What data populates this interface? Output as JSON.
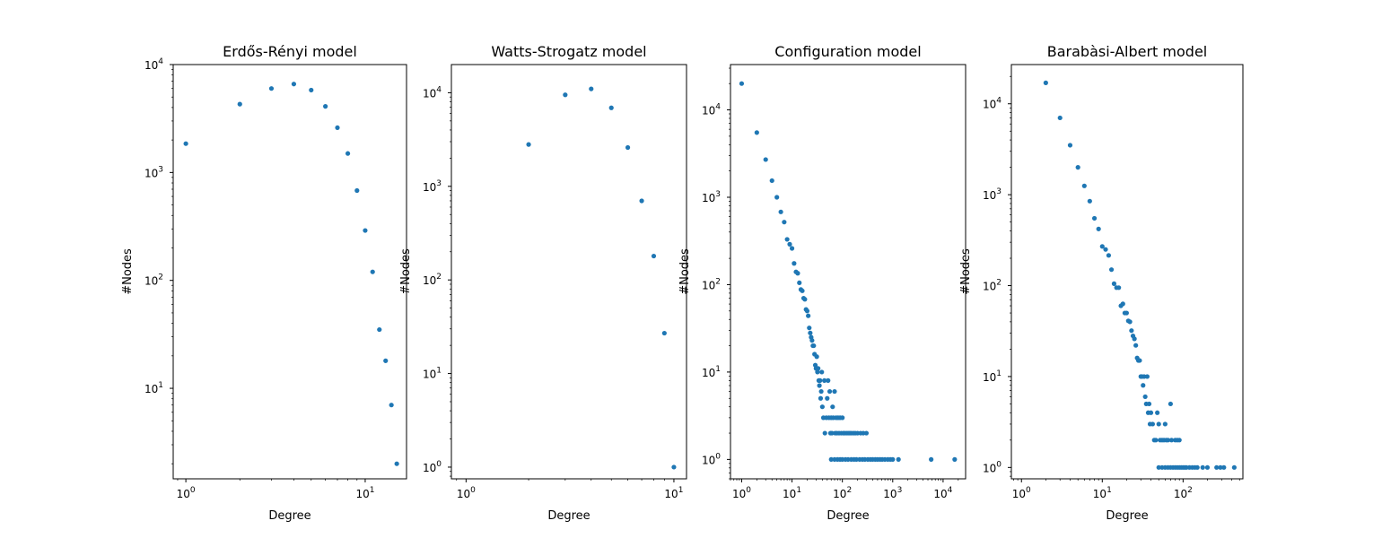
{
  "figure": {
    "background": "#ffffff",
    "marker_color": "#1f77b4"
  },
  "chart_data": [
    {
      "type": "scatter",
      "title": "Erdős-Rényi model",
      "xlabel": "Degree",
      "ylabel": "#Nodes",
      "xscale": "log",
      "yscale": "log",
      "xlim": [
        0.85,
        17
      ],
      "ylim": [
        1.45,
        10000
      ],
      "xticks": [
        {
          "value": 1,
          "base": "10",
          "exp": "0"
        },
        {
          "value": 10,
          "base": "10",
          "exp": "1"
        }
      ],
      "yticks": [
        {
          "value": 10,
          "base": "10",
          "exp": "1"
        },
        {
          "value": 100,
          "base": "10",
          "exp": "2"
        },
        {
          "value": 1000,
          "base": "10",
          "exp": "3"
        },
        {
          "value": 10000,
          "base": "10",
          "exp": "4"
        }
      ],
      "grid": false,
      "points": [
        [
          1,
          1850
        ],
        [
          2,
          4300
        ],
        [
          3,
          6000
        ],
        [
          4,
          6600
        ],
        [
          5,
          5800
        ],
        [
          6,
          4100
        ],
        [
          7,
          2600
        ],
        [
          8,
          1500
        ],
        [
          9,
          680
        ],
        [
          10,
          290
        ],
        [
          11,
          120
        ],
        [
          12,
          35
        ],
        [
          13,
          18
        ],
        [
          14,
          7
        ],
        [
          15,
          2
        ]
      ]
    },
    {
      "type": "scatter",
      "title": "Watts-Strogatz model",
      "xlabel": "Degree",
      "ylabel": "#Nodes",
      "xscale": "log",
      "yscale": "log",
      "xlim": [
        0.85,
        11.5
      ],
      "ylim": [
        0.75,
        20000
      ],
      "xticks": [
        {
          "value": 1,
          "base": "10",
          "exp": "0"
        },
        {
          "value": 10,
          "base": "10",
          "exp": "1"
        }
      ],
      "yticks": [
        {
          "value": 1,
          "base": "10",
          "exp": "0"
        },
        {
          "value": 10,
          "base": "10",
          "exp": "1"
        },
        {
          "value": 100,
          "base": "10",
          "exp": "2"
        },
        {
          "value": 1000,
          "base": "10",
          "exp": "3"
        },
        {
          "value": 10000,
          "base": "10",
          "exp": "4"
        }
      ],
      "grid": false,
      "points": [
        [
          2,
          2800
        ],
        [
          3,
          9500
        ],
        [
          4,
          11000
        ],
        [
          5,
          6900
        ],
        [
          6,
          2600
        ],
        [
          7,
          700
        ],
        [
          8,
          180
        ],
        [
          9,
          27
        ],
        [
          10,
          1
        ]
      ]
    },
    {
      "type": "scatter",
      "title": "Configuration model",
      "xlabel": "Degree",
      "ylabel": "#Nodes",
      "xscale": "log",
      "yscale": "log",
      "xlim": [
        0.6,
        28000
      ],
      "ylim": [
        0.6,
        33000
      ],
      "xticks": [
        {
          "value": 1,
          "base": "10",
          "exp": "0"
        },
        {
          "value": 10,
          "base": "10",
          "exp": "1"
        },
        {
          "value": 100,
          "base": "10",
          "exp": "2"
        },
        {
          "value": 1000,
          "base": "10",
          "exp": "3"
        },
        {
          "value": 10000,
          "base": "10",
          "exp": "4"
        }
      ],
      "yticks": [
        {
          "value": 1,
          "base": "10",
          "exp": "0"
        },
        {
          "value": 10,
          "base": "10",
          "exp": "1"
        },
        {
          "value": 100,
          "base": "10",
          "exp": "2"
        },
        {
          "value": 1000,
          "base": "10",
          "exp": "3"
        },
        {
          "value": 10000,
          "base": "10",
          "exp": "4"
        }
      ],
      "grid": false,
      "points": [
        [
          1,
          20000
        ],
        [
          2,
          5500
        ],
        [
          3,
          2700
        ],
        [
          4,
          1550
        ],
        [
          5,
          1000
        ],
        [
          6,
          680
        ],
        [
          7,
          520
        ],
        [
          8,
          330
        ],
        [
          9,
          290
        ],
        [
          10,
          260
        ],
        [
          11,
          175
        ],
        [
          12,
          140
        ],
        [
          13,
          135
        ],
        [
          14,
          105
        ],
        [
          15,
          88
        ],
        [
          16,
          85
        ],
        [
          17,
          70
        ],
        [
          18,
          68
        ],
        [
          19,
          52
        ],
        [
          20,
          50
        ],
        [
          21,
          44
        ],
        [
          22,
          32
        ],
        [
          23,
          28
        ],
        [
          24,
          25
        ],
        [
          25,
          23
        ],
        [
          26,
          20
        ],
        [
          27,
          20
        ],
        [
          28,
          16
        ],
        [
          29,
          12
        ],
        [
          30,
          11
        ],
        [
          31,
          15
        ],
        [
          32,
          10
        ],
        [
          33,
          11
        ],
        [
          34,
          8
        ],
        [
          35,
          7
        ],
        [
          36,
          8
        ],
        [
          37,
          5
        ],
        [
          38,
          6
        ],
        [
          39,
          10
        ],
        [
          40,
          4
        ],
        [
          42,
          3
        ],
        [
          44,
          8
        ],
        [
          45,
          2
        ],
        [
          48,
          3
        ],
        [
          50,
          5
        ],
        [
          52,
          8
        ],
        [
          54,
          3
        ],
        [
          56,
          6
        ],
        [
          58,
          2
        ],
        [
          60,
          3
        ],
        [
          62,
          2
        ],
        [
          64,
          4
        ],
        [
          66,
          3
        ],
        [
          70,
          6
        ],
        [
          72,
          2
        ],
        [
          75,
          3
        ],
        [
          78,
          2
        ],
        [
          82,
          3
        ],
        [
          86,
          2
        ],
        [
          90,
          3
        ],
        [
          95,
          2
        ],
        [
          100,
          3
        ],
        [
          105,
          2
        ],
        [
          110,
          2
        ],
        [
          120,
          2
        ],
        [
          130,
          2
        ],
        [
          140,
          2
        ],
        [
          150,
          2
        ],
        [
          165,
          2
        ],
        [
          180,
          2
        ],
        [
          200,
          2
        ],
        [
          230,
          2
        ],
        [
          260,
          2
        ],
        [
          300,
          2
        ],
        [
          60,
          1
        ],
        [
          70,
          1
        ],
        [
          80,
          1
        ],
        [
          90,
          1
        ],
        [
          100,
          1
        ],
        [
          115,
          1
        ],
        [
          130,
          1
        ],
        [
          150,
          1
        ],
        [
          170,
          1
        ],
        [
          190,
          1
        ],
        [
          220,
          1
        ],
        [
          250,
          1
        ],
        [
          280,
          1
        ],
        [
          320,
          1
        ],
        [
          360,
          1
        ],
        [
          400,
          1
        ],
        [
          450,
          1
        ],
        [
          500,
          1
        ],
        [
          560,
          1
        ],
        [
          620,
          1
        ],
        [
          700,
          1
        ],
        [
          800,
          1
        ],
        [
          900,
          1
        ],
        [
          1000,
          1
        ],
        [
          1300,
          1
        ],
        [
          5800,
          1
        ],
        [
          17000,
          1
        ]
      ]
    },
    {
      "type": "scatter",
      "title": "Barabàsi-Albert model",
      "xlabel": "Degree",
      "ylabel": "#Nodes",
      "xscale": "log",
      "yscale": "log",
      "xlim": [
        0.75,
        550
      ],
      "ylim": [
        0.75,
        27000
      ],
      "xticks": [
        {
          "value": 1,
          "base": "10",
          "exp": "0"
        },
        {
          "value": 10,
          "base": "10",
          "exp": "1"
        },
        {
          "value": 100,
          "base": "10",
          "exp": "2"
        }
      ],
      "yticks": [
        {
          "value": 1,
          "base": "10",
          "exp": "0"
        },
        {
          "value": 10,
          "base": "10",
          "exp": "1"
        },
        {
          "value": 100,
          "base": "10",
          "exp": "2"
        },
        {
          "value": 1000,
          "base": "10",
          "exp": "3"
        },
        {
          "value": 10000,
          "base": "10",
          "exp": "4"
        }
      ],
      "grid": false,
      "points": [
        [
          2,
          17000
        ],
        [
          3,
          7000
        ],
        [
          4,
          3500
        ],
        [
          5,
          2000
        ],
        [
          6,
          1250
        ],
        [
          7,
          850
        ],
        [
          8,
          550
        ],
        [
          9,
          420
        ],
        [
          10,
          270
        ],
        [
          11,
          250
        ],
        [
          12,
          215
        ],
        [
          13,
          150
        ],
        [
          14,
          105
        ],
        [
          15,
          95
        ],
        [
          16,
          95
        ],
        [
          17,
          60
        ],
        [
          18,
          63
        ],
        [
          19,
          50
        ],
        [
          20,
          50
        ],
        [
          21,
          41
        ],
        [
          22,
          40
        ],
        [
          23,
          32
        ],
        [
          24,
          28
        ],
        [
          25,
          26
        ],
        [
          26,
          22
        ],
        [
          27,
          16
        ],
        [
          28,
          15
        ],
        [
          29,
          15
        ],
        [
          30,
          10
        ],
        [
          31,
          10
        ],
        [
          32,
          8
        ],
        [
          33,
          10
        ],
        [
          34,
          6
        ],
        [
          35,
          5
        ],
        [
          36,
          10
        ],
        [
          37,
          4
        ],
        [
          38,
          5
        ],
        [
          39,
          3
        ],
        [
          40,
          4
        ],
        [
          42,
          3
        ],
        [
          44,
          2
        ],
        [
          46,
          2
        ],
        [
          48,
          4
        ],
        [
          50,
          3
        ],
        [
          52,
          2
        ],
        [
          55,
          2
        ],
        [
          58,
          2
        ],
        [
          60,
          3
        ],
        [
          62,
          2
        ],
        [
          65,
          2
        ],
        [
          70,
          5
        ],
        [
          72,
          2
        ],
        [
          80,
          2
        ],
        [
          85,
          2
        ],
        [
          90,
          2
        ],
        [
          50,
          1
        ],
        [
          55,
          1
        ],
        [
          60,
          1
        ],
        [
          65,
          1
        ],
        [
          70,
          1
        ],
        [
          75,
          1
        ],
        [
          80,
          1
        ],
        [
          85,
          1
        ],
        [
          90,
          1
        ],
        [
          95,
          1
        ],
        [
          100,
          1
        ],
        [
          105,
          1
        ],
        [
          110,
          1
        ],
        [
          120,
          1
        ],
        [
          130,
          1
        ],
        [
          140,
          1
        ],
        [
          150,
          1
        ],
        [
          175,
          1
        ],
        [
          200,
          1
        ],
        [
          260,
          1
        ],
        [
          290,
          1
        ],
        [
          320,
          1
        ],
        [
          430,
          1
        ]
      ]
    }
  ]
}
